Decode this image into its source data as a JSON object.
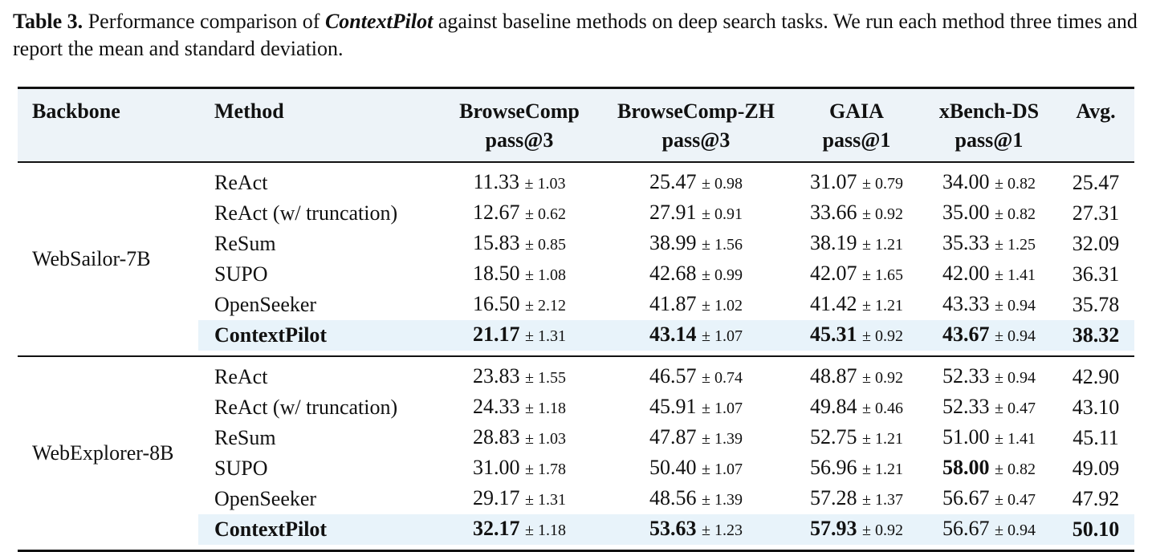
{
  "caption": {
    "label": "Table 3.",
    "text_before": " Performance comparison of ",
    "name": "ContextPilot",
    "text_after": " against baseline methods on deep search tasks. We run each method three times and report the mean and standard deviation."
  },
  "table": {
    "headers": {
      "backbone": "Backbone",
      "method": "Method",
      "bc": {
        "name": "BrowseComp",
        "metric": "pass@3"
      },
      "bczh": {
        "name": "BrowseComp-ZH",
        "metric": "pass@3"
      },
      "gaia": {
        "name": "GAIA",
        "metric": "pass@1"
      },
      "xb": {
        "name": "xBench-DS",
        "metric": "pass@1"
      },
      "avg": "Avg."
    },
    "groups": [
      {
        "backbone": "WebSailor-7B",
        "rows": [
          {
            "method": "ReAct",
            "bc": {
              "m": "11.33",
              "s": "± 1.03"
            },
            "bczh": {
              "m": "25.47",
              "s": "± 0.98"
            },
            "gaia": {
              "m": "31.07",
              "s": "± 0.79"
            },
            "xb": {
              "m": "34.00",
              "s": "± 0.82"
            },
            "avg": "25.47"
          },
          {
            "method": "ReAct (w/ truncation)",
            "bc": {
              "m": "12.67",
              "s": "± 0.62"
            },
            "bczh": {
              "m": "27.91",
              "s": "± 0.91"
            },
            "gaia": {
              "m": "33.66",
              "s": "± 0.92"
            },
            "xb": {
              "m": "35.00",
              "s": "± 0.82"
            },
            "avg": "27.31"
          },
          {
            "method": "ReSum",
            "bc": {
              "m": "15.83",
              "s": "± 0.85"
            },
            "bczh": {
              "m": "38.99",
              "s": "± 1.56"
            },
            "gaia": {
              "m": "38.19",
              "s": "± 1.21"
            },
            "xb": {
              "m": "35.33",
              "s": "± 1.25"
            },
            "avg": "32.09"
          },
          {
            "method": "SUPO",
            "bc": {
              "m": "18.50",
              "s": "± 1.08"
            },
            "bczh": {
              "m": "42.68",
              "s": "± 0.99"
            },
            "gaia": {
              "m": "42.07",
              "s": "± 1.65"
            },
            "xb": {
              "m": "42.00",
              "s": "± 1.41"
            },
            "avg": "36.31"
          },
          {
            "method": "OpenSeeker",
            "bc": {
              "m": "16.50",
              "s": "± 2.12"
            },
            "bczh": {
              "m": "41.87",
              "s": "± 1.02"
            },
            "gaia": {
              "m": "41.42",
              "s": "± 1.21"
            },
            "xb": {
              "m": "43.33",
              "s": "± 0.94"
            },
            "avg": "35.78"
          },
          {
            "method": "ContextPilot",
            "bc": {
              "m": "21.17",
              "s": "± 1.31"
            },
            "bczh": {
              "m": "43.14",
              "s": "± 1.07"
            },
            "gaia": {
              "m": "45.31",
              "s": "± 0.92"
            },
            "xb": {
              "m": "43.67",
              "s": "± 0.94"
            },
            "avg": "38.32"
          }
        ]
      },
      {
        "backbone": "WebExplorer-8B",
        "rows": [
          {
            "method": "ReAct",
            "bc": {
              "m": "23.83",
              "s": "± 1.55"
            },
            "bczh": {
              "m": "46.57",
              "s": "± 0.74"
            },
            "gaia": {
              "m": "48.87",
              "s": "± 0.92"
            },
            "xb": {
              "m": "52.33",
              "s": "± 0.94"
            },
            "avg": "42.90"
          },
          {
            "method": "ReAct (w/ truncation)",
            "bc": {
              "m": "24.33",
              "s": "± 1.18"
            },
            "bczh": {
              "m": "45.91",
              "s": "± 1.07"
            },
            "gaia": {
              "m": "49.84",
              "s": "± 0.46"
            },
            "xb": {
              "m": "52.33",
              "s": "± 0.47"
            },
            "avg": "43.10"
          },
          {
            "method": "ReSum",
            "bc": {
              "m": "28.83",
              "s": "± 1.03"
            },
            "bczh": {
              "m": "47.87",
              "s": "± 1.39"
            },
            "gaia": {
              "m": "52.75",
              "s": "± 1.21"
            },
            "xb": {
              "m": "51.00",
              "s": "± 1.41"
            },
            "avg": "45.11"
          },
          {
            "method": "SUPO",
            "bc": {
              "m": "31.00",
              "s": "± 1.78"
            },
            "bczh": {
              "m": "50.40",
              "s": "± 1.07"
            },
            "gaia": {
              "m": "56.96",
              "s": "± 1.21"
            },
            "xb": {
              "m": "58.00",
              "s": "± 0.82"
            },
            "avg": "49.09"
          },
          {
            "method": "OpenSeeker",
            "bc": {
              "m": "29.17",
              "s": "± 1.31"
            },
            "bczh": {
              "m": "48.56",
              "s": "± 1.39"
            },
            "gaia": {
              "m": "57.28",
              "s": "± 1.37"
            },
            "xb": {
              "m": "56.67",
              "s": "± 0.47"
            },
            "avg": "47.92"
          },
          {
            "method": "ContextPilot",
            "bc": {
              "m": "32.17",
              "s": "± 1.18"
            },
            "bczh": {
              "m": "53.63",
              "s": "± 1.23"
            },
            "gaia": {
              "m": "57.93",
              "s": "± 0.92"
            },
            "xb": {
              "m": "56.67",
              "s": "± 0.94"
            },
            "avg": "50.10"
          }
        ]
      }
    ]
  }
}
